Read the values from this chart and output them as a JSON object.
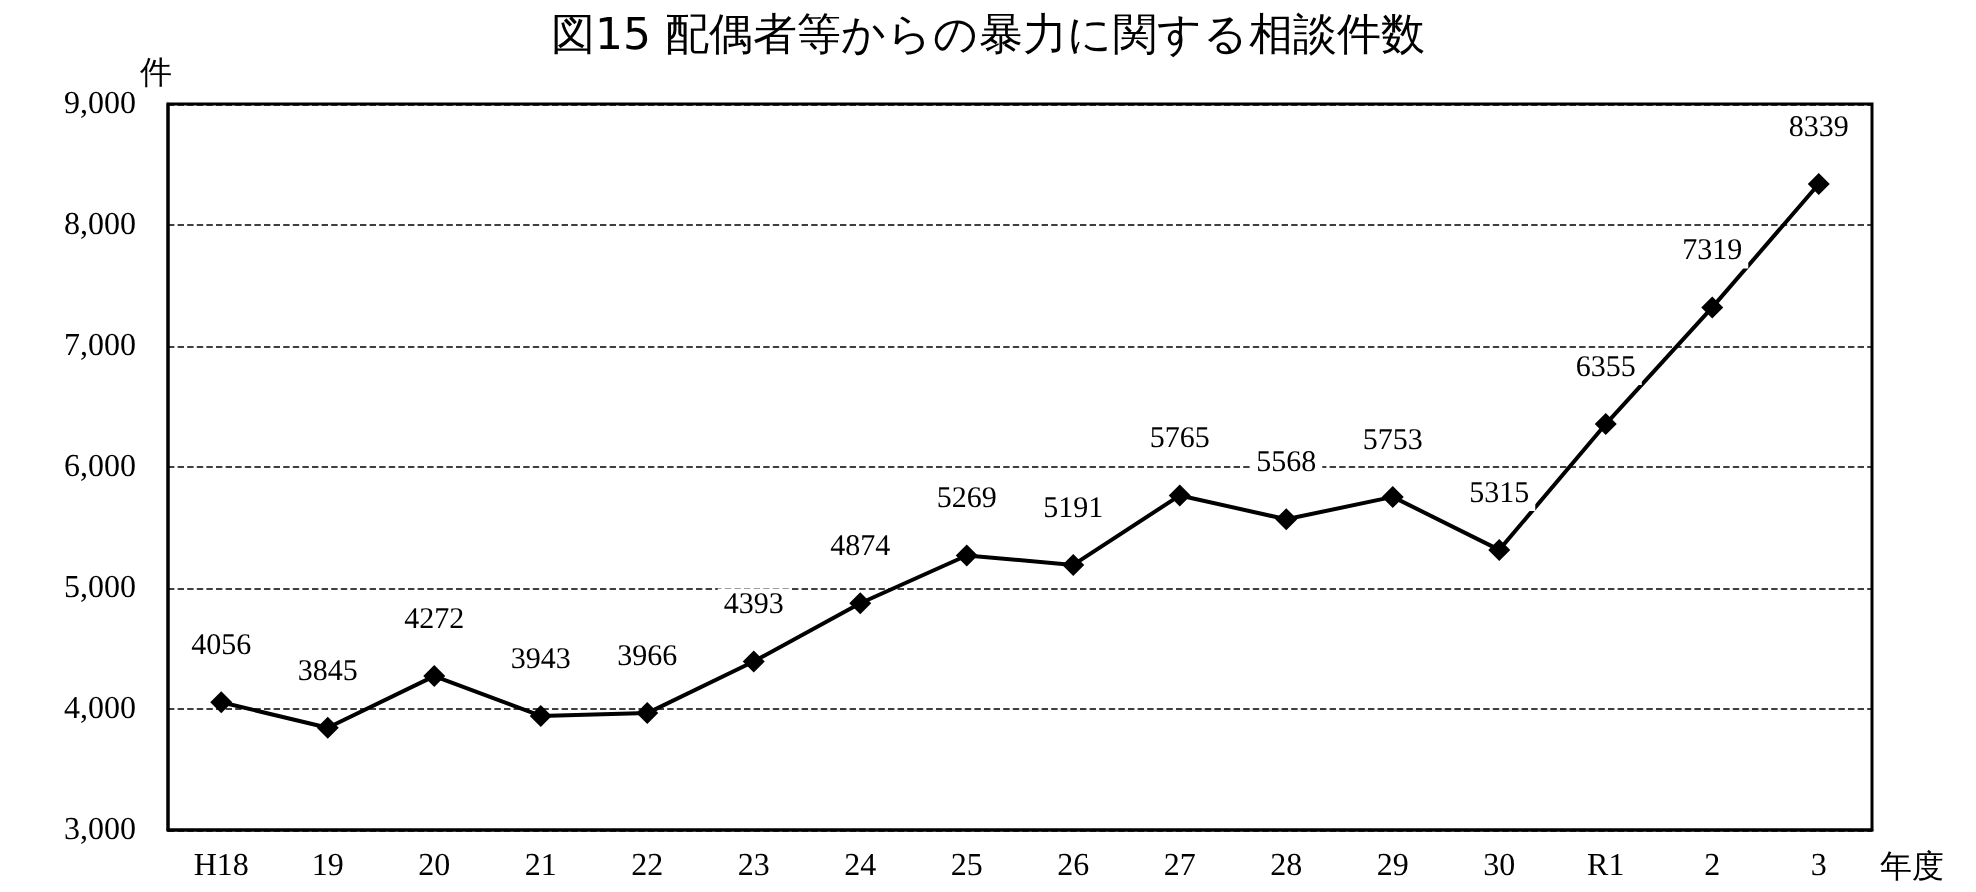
{
  "chart_data": {
    "type": "line",
    "title": "図15 配偶者等からの暴力に関する相談件数",
    "xlabel": "年度",
    "ylabel": "件",
    "categories": [
      "H18",
      "19",
      "20",
      "21",
      "22",
      "23",
      "24",
      "25",
      "26",
      "27",
      "28",
      "29",
      "30",
      "R1",
      "2",
      "3"
    ],
    "values": [
      4056,
      3845,
      4272,
      3943,
      3966,
      4393,
      4874,
      5269,
      5191,
      5765,
      5568,
      5753,
      5315,
      6355,
      7319,
      8339
    ],
    "color": "#000000",
    "ylim": [
      3000,
      9000
    ],
    "yticks": [
      {
        "value": 3000,
        "label": "3,000"
      },
      {
        "value": 4000,
        "label": "4,000"
      },
      {
        "value": 5000,
        "label": "5,000"
      },
      {
        "value": 6000,
        "label": "6,000"
      },
      {
        "value": 7000,
        "label": "7,000"
      },
      {
        "value": 8000,
        "label": "8,000"
      },
      {
        "value": 9000,
        "label": "9,000"
      }
    ],
    "grid": "y",
    "marker": "diamond",
    "line_style": "solid",
    "data_labels": true
  }
}
